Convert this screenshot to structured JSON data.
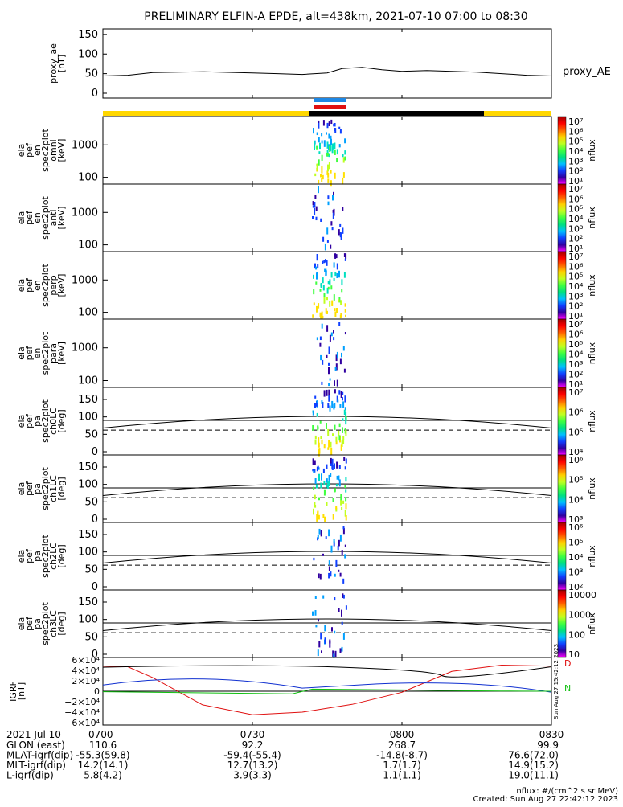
{
  "title": "PRELIMINARY ELFIN-A EPDE, alt=438km, 2021-07-10 07:00 to 08:30",
  "colors": {
    "axis": "#000000",
    "ae_line": "#000000",
    "bar_science": "#ffd700",
    "bar_orbit": "#000000",
    "marker_blue": "#1e88e5",
    "marker_red": "#e01010",
    "grf_black": "#000000",
    "grf_blue": "#1030d0",
    "grf_green": "#10c010",
    "grf_red": "#e01010"
  },
  "time_axis": {
    "date_label": "2021 Jul 10",
    "ticks": [
      "0700",
      "0730",
      "0800",
      "0830"
    ],
    "rows": [
      {
        "label": "GLON (east)",
        "values": [
          "110.6",
          "92.2",
          "268.7",
          "99.9"
        ]
      },
      {
        "label": "MLAT-igrf(dip)",
        "values": [
          "-55.3(59.8)",
          "-59.4(-55.4)",
          "-14.8(-8.7)",
          "76.6(72.0)"
        ]
      },
      {
        "label": "MLT-igrf(dip)",
        "values": [
          "14.2(14.1)",
          "12.7(13.2)",
          "1.7(1.7)",
          "14.9(15.2)"
        ]
      },
      {
        "label": "L-igrf(dip)",
        "values": [
          "5.8(4.2)",
          "3.9(3.3)",
          "1.1(1.1)",
          "19.0(11.1)"
        ]
      }
    ]
  },
  "footer": {
    "units": "nflux: #/(cm^2 s sr MeV)",
    "created": "Created: Sun Aug 27 22:42:12 2023",
    "side_stamp": "Sun Aug 27 15:42:12 2023"
  },
  "panels": {
    "ae": {
      "ylabel": [
        "proxy_ae",
        "[nT]"
      ],
      "ticks": [
        "150",
        "100",
        "50",
        "0"
      ],
      "legend": "proxy_AE"
    },
    "en": [
      {
        "ylabel": [
          "ela",
          "pef",
          "en",
          "spec2plot",
          "omni",
          "[keV]"
        ],
        "ticks": [
          "1000",
          "100"
        ]
      },
      {
        "ylabel": [
          "ela",
          "pef",
          "en",
          "spec2plot",
          "anti",
          "[keV]"
        ],
        "ticks": [
          "1000",
          "100"
        ]
      },
      {
        "ylabel": [
          "ela",
          "pef",
          "en",
          "spec2plot",
          "perp",
          "[keV]"
        ],
        "ticks": [
          "1000",
          "100"
        ]
      },
      {
        "ylabel": [
          "ela",
          "pef",
          "en",
          "spec2plot",
          "para",
          "[keV]"
        ],
        "ticks": [
          "1000",
          "100"
        ]
      }
    ],
    "pa": [
      {
        "ylabel": [
          "ela",
          "pef",
          "pa",
          "spec2plot",
          "ch0LC",
          "[deg]"
        ],
        "ticks": [
          "150",
          "100",
          "50",
          "0"
        ]
      },
      {
        "ylabel": [
          "ela",
          "pef",
          "pa",
          "spec2plot",
          "ch1LC",
          "[deg]"
        ],
        "ticks": [
          "150",
          "100",
          "50",
          "0"
        ]
      },
      {
        "ylabel": [
          "ela",
          "pef",
          "pa",
          "spec2plot",
          "ch2LC",
          "[deg]"
        ],
        "ticks": [
          "150",
          "100",
          "50",
          "0"
        ]
      },
      {
        "ylabel": [
          "ela",
          "pef",
          "pa",
          "spec2plot",
          "ch3LC",
          "[deg]"
        ],
        "ticks": [
          "150",
          "100",
          "50",
          "0"
        ]
      }
    ],
    "grf": {
      "ylabel": [
        "IGRF",
        "[nT]"
      ],
      "ticks": [
        "6×10⁴",
        "4×10⁴",
        "2×10⁴",
        "0",
        "−2×10⁴",
        "−4×10⁴",
        "−6×10⁴"
      ],
      "legend": [
        "D",
        "N"
      ]
    }
  },
  "colorbars": [
    {
      "label": "nflux",
      "ticks": [
        "10⁷",
        "10⁶",
        "10⁵",
        "10⁴",
        "10³",
        "10²",
        "10¹"
      ]
    },
    {
      "label": "nflux",
      "ticks": [
        "10⁷",
        "10⁶",
        "10⁵",
        "10⁴",
        "10³",
        "10²",
        "10¹"
      ]
    },
    {
      "label": "nflux",
      "ticks": [
        "10⁷",
        "10⁶",
        "10⁵",
        "10⁴",
        "10³",
        "10²",
        "10¹"
      ]
    },
    {
      "label": "nflux",
      "ticks": [
        "10⁷",
        "10⁶",
        "10⁵",
        "10⁴",
        "10³",
        "10²",
        "10¹"
      ]
    },
    {
      "label": "nflux",
      "ticks": [
        "10⁷",
        "10⁶",
        "10⁵",
        "10⁴"
      ]
    },
    {
      "label": "nflux",
      "ticks": [
        "10⁶",
        "10⁵",
        "10⁴",
        "10³"
      ]
    },
    {
      "label": "nflux",
      "ticks": [
        "10⁶",
        "10⁵",
        "10⁴",
        "10³",
        "10²"
      ]
    },
    {
      "label": "nflux",
      "ticks": [
        "10000",
        "1000",
        "100",
        "10"
      ]
    }
  ],
  "chart_data": {
    "type": "line",
    "title": "PRELIMINARY ELFIN-A EPDE, alt=438km, 2021-07-10 07:00 to 08:30",
    "x_unit": "minutes after 07:00",
    "xlim": [
      0,
      90
    ],
    "series": [
      {
        "name": "proxy_AE",
        "panel": "ae",
        "ylim": [
          0,
          160
        ],
        "x": [
          0,
          5,
          10,
          20,
          30,
          35,
          40,
          45,
          48,
          52,
          56,
          60,
          65,
          70,
          75,
          80,
          85,
          90
        ],
        "y": [
          44,
          46,
          53,
          55,
          52,
          50,
          48,
          52,
          63,
          66,
          60,
          56,
          58,
          56,
          54,
          50,
          46,
          44
        ]
      },
      {
        "name": "D",
        "panel": "grf",
        "ylim": [
          -60000,
          60000
        ],
        "x": [
          0,
          5,
          10,
          20,
          30,
          40,
          50,
          60,
          70,
          80,
          90
        ],
        "y": [
          48000,
          47000,
          26000,
          -26000,
          -45000,
          -40000,
          -25000,
          -2000,
          38000,
          50000,
          48000
        ]
      }
    ]
  }
}
